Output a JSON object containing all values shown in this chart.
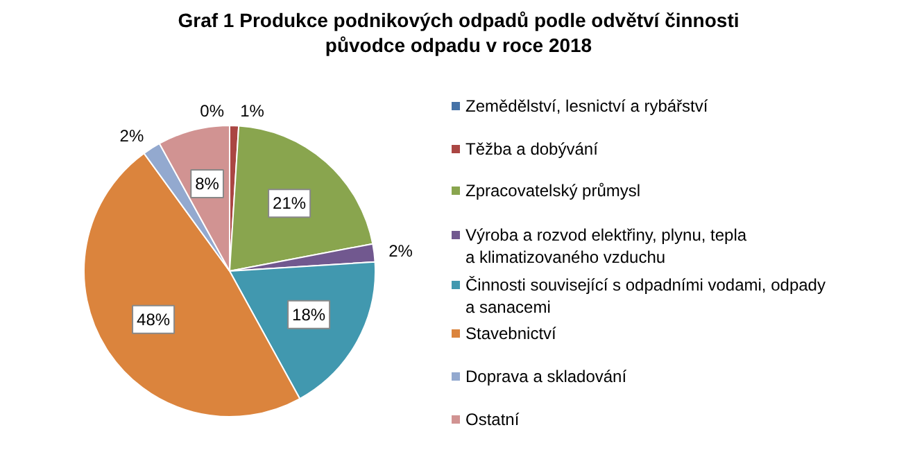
{
  "chart_data": {
    "type": "pie",
    "title": "Graf 1 Produkce podnikových odpadů podle odvětví činnosti\npůvodce odpadu v roce 2018",
    "categories": [
      "Zemědělství, lesnictví a rybářství",
      "Těžba a dobývání",
      "Zpracovatelský průmysl",
      "Výroba a rozvod elektřiny, plynu, tepla\na klimatizovaného vzduchu",
      "Činnosti související s odpadními vodami, odpady\na sanacemi",
      "Stavebnictví",
      "Doprava a skladování",
      "Ostatní"
    ],
    "values": [
      0,
      1,
      21,
      2,
      18,
      48,
      2,
      8
    ],
    "colors": [
      "#4572a7",
      "#aa4643",
      "#89a54e",
      "#71588f",
      "#4198af",
      "#db843d",
      "#93a9cf",
      "#d19392"
    ],
    "value_labels": [
      "0%",
      "1%",
      "21%",
      "2%",
      "18%",
      "48%",
      "2%",
      "8%"
    ],
    "legend": "right"
  }
}
